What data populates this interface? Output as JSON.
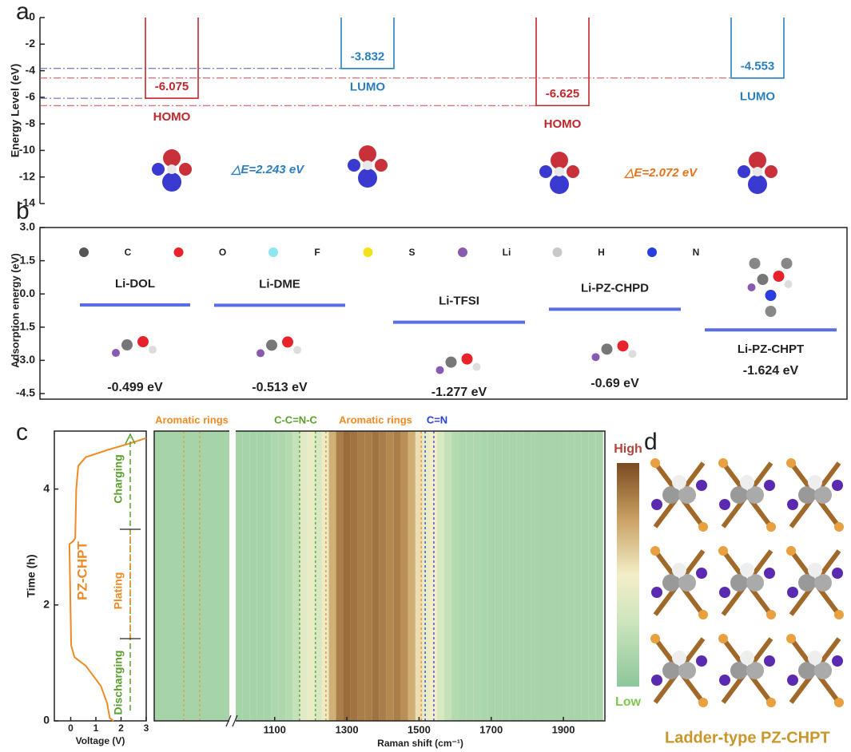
{
  "panels": [
    "a",
    "b",
    "c",
    "d"
  ],
  "chart_data": [
    {
      "type": "energy-level",
      "ylabel": "Energy Level (eV)",
      "ylim": [
        -14,
        0
      ],
      "yticks": [
        0,
        -2,
        -4,
        -6,
        -8,
        -10,
        -12,
        -14
      ],
      "molecules": [
        {
          "levels": [
            {
              "name": "HOMO",
              "value": -6.075,
              "color": "#c0272d"
            },
            {
              "name": "LUMO",
              "value": -3.832,
              "color": "#2a7ec0"
            }
          ],
          "guide_color": "#4a5fa8",
          "gap": "△E=2.243 eV",
          "gap_color": "#2a7ec0"
        },
        {
          "levels": [
            {
              "name": "HOMO",
              "value": -6.625,
              "color": "#c0272d"
            },
            {
              "name": "LUMO",
              "value": -4.553,
              "color": "#2a7ec0"
            }
          ],
          "guide_color": "#d9444a",
          "gap": "△E=2.072 eV",
          "gap_color": "#e8731a"
        }
      ]
    },
    {
      "type": "adsorption",
      "ylabel": "Adsorption energy (eV)",
      "ylim": [
        -4.5,
        3
      ],
      "yticks": [
        {
          "value": 3,
          "label": "3.0"
        },
        {
          "value": 1.5,
          "label": "1.5"
        },
        {
          "value": 0,
          "label": "0.0"
        },
        {
          "value": -1.5,
          "label": "-1.5"
        },
        {
          "value": -3,
          "label": "-3.0"
        },
        {
          "value": -4.5,
          "label": "-4.5"
        }
      ],
      "categories": [
        "Li-DOL",
        "Li-DME",
        "Li-TFSI",
        "Li-PZ-CHPD",
        "Li-PZ-CHPT"
      ],
      "values": [
        -0.499,
        -0.513,
        -1.277,
        -0.69,
        -1.624
      ],
      "value_labels": [
        "-0.499 eV",
        "-0.513 eV",
        "-1.277 eV",
        "-0.69 eV",
        "-1.624 eV"
      ],
      "color": "#5b6ee1",
      "legend": [
        {
          "name": "C",
          "color": "#555555"
        },
        {
          "name": "O",
          "color": "#e8222a"
        },
        {
          "name": "F",
          "color": "#8ee6ef"
        },
        {
          "name": "S",
          "color": "#f2e21a"
        },
        {
          "name": "Li",
          "color": "#8a5ab0"
        },
        {
          "name": "H",
          "color": "#c8c8c8"
        },
        {
          "name": "N",
          "color": "#2a3ee0"
        }
      ]
    },
    {
      "type": "line",
      "xlabel": "Voltage (V)",
      "ylabel": "Time (h)",
      "xlim": [
        -0.65,
        3
      ],
      "ylim": [
        0,
        5
      ],
      "xticks": [
        0,
        1,
        2,
        3
      ],
      "yticks": [
        0,
        2,
        4
      ],
      "series": [
        {
          "name": "PZ-CHPT",
          "color": "#f08a24",
          "x": [
            1.7,
            1.55,
            1.45,
            1.2,
            0.6,
            0.15,
            0.02,
            -0.03,
            -0.05,
            0.1,
            0.18,
            0.22,
            0.3,
            0.6,
            1.5,
            2.3,
            3.0
          ],
          "values": [
            0,
            0.05,
            0.3,
            0.6,
            0.95,
            1.1,
            1.3,
            2.5,
            3.05,
            3.1,
            3.15,
            4.0,
            4.4,
            4.55,
            4.68,
            4.78,
            4.88
          ]
        }
      ],
      "annotations": [
        {
          "text": "Charging",
          "color": "#5aa02c"
        },
        {
          "text": "Plating",
          "color": "#f08a24"
        },
        {
          "text": "Discharging",
          "color": "#5aa02c"
        }
      ]
    },
    {
      "type": "heatmap",
      "xlabel": "Raman shift (cm⁻¹)",
      "xlim": [
        992,
        2015
      ],
      "xticks": [
        1100,
        1300,
        1500,
        1700,
        1900
      ],
      "x": [
        1000,
        1020,
        1040,
        1060,
        1080,
        1100,
        1120,
        1140,
        1160,
        1180,
        1200,
        1220,
        1240,
        1260,
        1280,
        1300,
        1320,
        1340,
        1360,
        1380,
        1400,
        1420,
        1440,
        1460,
        1480,
        1500,
        1520,
        1540,
        1560,
        1580,
        1600,
        1620,
        1640,
        1660,
        1680,
        1700,
        1720,
        1740,
        1760,
        1780,
        1800,
        1820,
        1840,
        1860,
        1880,
        1900,
        1920,
        1940,
        1960,
        1980,
        2000
      ],
      "values": [
        0.12,
        0.12,
        0.12,
        0.12,
        0.12,
        0.15,
        0.15,
        0.18,
        0.25,
        0.4,
        0.45,
        0.35,
        0.45,
        0.7,
        0.85,
        0.9,
        0.88,
        0.85,
        0.85,
        0.88,
        0.85,
        0.82,
        0.85,
        0.8,
        0.7,
        0.55,
        0.45,
        0.5,
        0.35,
        0.25,
        0.18,
        0.15,
        0.15,
        0.15,
        0.14,
        0.13,
        0.13,
        0.13,
        0.13,
        0.13,
        0.13,
        0.13,
        0.13,
        0.13,
        0.13,
        0.13,
        0.13,
        0.13,
        0.13,
        0.13,
        0.13
      ],
      "markers": [
        {
          "x": 1169,
          "color": "#5aa02c"
        },
        {
          "x": 1213,
          "color": "#5aa02c"
        },
        {
          "x": 1242,
          "color": "#f08a24"
        },
        {
          "x": 1506,
          "color": "#f08a24"
        },
        {
          "x": 1517,
          "color": "#2a3ee0"
        },
        {
          "x": 1541,
          "color": "#2a3ee0"
        }
      ],
      "labels": [
        {
          "text": "Aromatic rings",
          "color": "#f08a24"
        },
        {
          "text": "C-C=N-C",
          "color": "#5aa02c"
        },
        {
          "text": "Aromatic rings",
          "color": "#f08a24"
        },
        {
          "text": "C=N",
          "color": "#2a3ee0"
        }
      ],
      "colorbar": [
        {
          "text": "High",
          "color": "#b0463a"
        },
        {
          "text": "Low",
          "color": "#7ec850"
        }
      ]
    }
  ],
  "figure_d": {
    "caption": "Ladder-type PZ-CHPT"
  }
}
